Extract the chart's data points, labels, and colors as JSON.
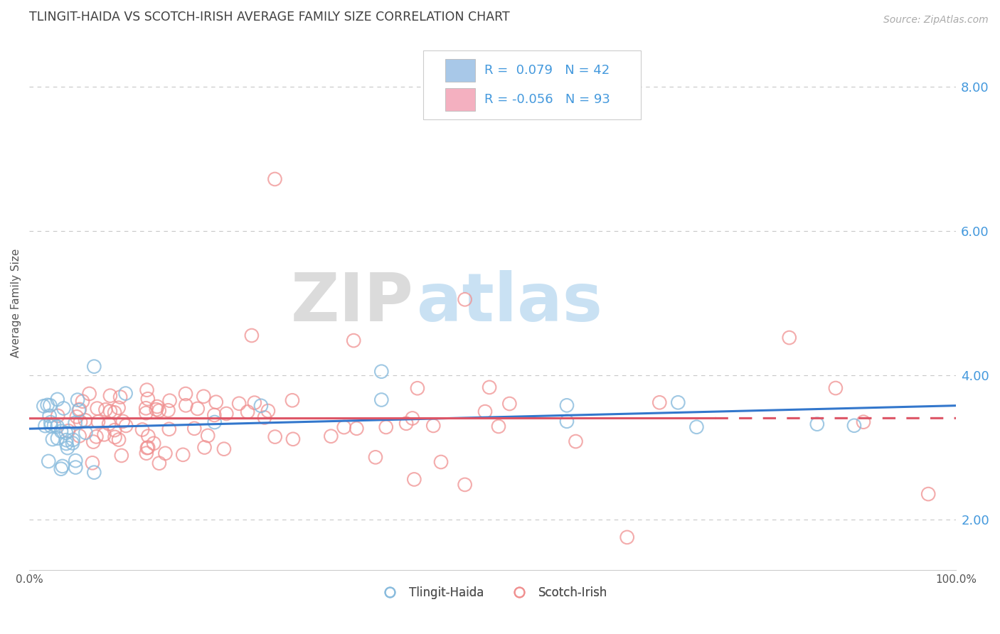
{
  "title": "TLINGIT-HAIDA VS SCOTCH-IRISH AVERAGE FAMILY SIZE CORRELATION CHART",
  "source": "Source: ZipAtlas.com",
  "ylabel": "Average Family Size",
  "legend_labels": [
    "Tlingit-Haida",
    "Scotch-Irish"
  ],
  "legend_r": [
    0.079,
    -0.056
  ],
  "legend_n": [
    42,
    93
  ],
  "xlim": [
    0.0,
    1.0
  ],
  "ylim": [
    1.3,
    8.7
  ],
  "yticks": [
    2.0,
    4.0,
    6.0,
    8.0
  ],
  "gridline_color": "#c8c8c8",
  "color_blue_patch": "#a8c8e8",
  "color_pink_patch": "#f4b0c0",
  "scatter_blue": "#88bbdd",
  "scatter_pink": "#f09090",
  "trend_blue": "#3377cc",
  "trend_pink": "#dd5566",
  "title_color": "#404040",
  "source_color": "#aaaaaa",
  "axis_color": "#4499dd",
  "seed": 17
}
